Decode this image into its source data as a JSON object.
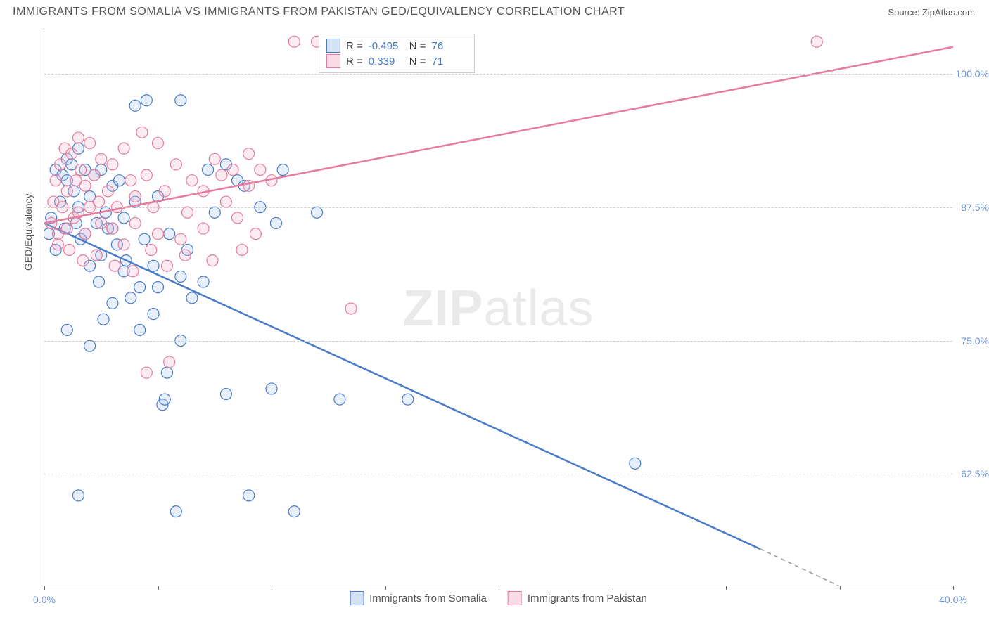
{
  "title": "IMMIGRANTS FROM SOMALIA VS IMMIGRANTS FROM PAKISTAN GED/EQUIVALENCY CORRELATION CHART",
  "source_label": "Source:",
  "source_name": "ZipAtlas.com",
  "y_axis_title": "GED/Equivalency",
  "watermark_bold": "ZIP",
  "watermark_rest": "atlas",
  "chart": {
    "type": "scatter",
    "xlim": [
      0,
      40
    ],
    "ylim": [
      52,
      104
    ],
    "xtick_positions": [
      0,
      5,
      10,
      15,
      20,
      25,
      30,
      35,
      40
    ],
    "xtick_labels": {
      "0": "0.0%",
      "40": "40.0%"
    },
    "ytick_positions": [
      62.5,
      75.0,
      87.5,
      100.0
    ],
    "ytick_labels": [
      "62.5%",
      "75.0%",
      "87.5%",
      "100.0%"
    ],
    "grid_color": "#cccccc",
    "background_color": "#ffffff",
    "axis_color": "#666666",
    "tick_label_color": "#6d94d0",
    "marker_radius": 8,
    "marker_stroke_width": 1.2,
    "marker_fill_opacity": 0.28,
    "series": [
      {
        "name": "Immigrants from Somalia",
        "color_stroke": "#4a7bc8",
        "color_fill": "#a8c5ec",
        "R": "-0.495",
        "N": "76",
        "trend": {
          "x1": 0,
          "y1": 86.0,
          "x2": 31.5,
          "y2": 55.5,
          "dash_x2": 37.0,
          "dash_y2": 50.0
        },
        "points": [
          [
            0.2,
            85.0
          ],
          [
            0.3,
            86.5
          ],
          [
            0.5,
            83.5
          ],
          [
            0.5,
            91.0
          ],
          [
            0.7,
            88.0
          ],
          [
            0.8,
            90.5
          ],
          [
            0.9,
            85.5
          ],
          [
            1.0,
            90.0
          ],
          [
            1.0,
            92.0
          ],
          [
            1.2,
            91.5
          ],
          [
            1.3,
            89.0
          ],
          [
            1.4,
            86.0
          ],
          [
            1.5,
            87.5
          ],
          [
            1.5,
            93.0
          ],
          [
            1.6,
            84.5
          ],
          [
            1.8,
            91.0
          ],
          [
            1.8,
            85.0
          ],
          [
            2.0,
            88.5
          ],
          [
            2.0,
            82.0
          ],
          [
            2.2,
            90.5
          ],
          [
            2.3,
            86.0
          ],
          [
            2.4,
            80.5
          ],
          [
            2.5,
            91.0
          ],
          [
            2.5,
            83.0
          ],
          [
            2.7,
            87.0
          ],
          [
            2.8,
            85.5
          ],
          [
            3.0,
            89.5
          ],
          [
            3.0,
            78.5
          ],
          [
            3.2,
            84.0
          ],
          [
            3.3,
            90.0
          ],
          [
            3.5,
            81.5
          ],
          [
            3.5,
            86.5
          ],
          [
            3.8,
            79.0
          ],
          [
            4.0,
            97.0
          ],
          [
            4.0,
            88.0
          ],
          [
            4.2,
            76.0
          ],
          [
            4.4,
            84.5
          ],
          [
            4.5,
            97.5
          ],
          [
            4.8,
            82.0
          ],
          [
            5.0,
            80.0
          ],
          [
            5.0,
            88.5
          ],
          [
            5.2,
            69.0
          ],
          [
            5.3,
            69.5
          ],
          [
            5.5,
            85.0
          ],
          [
            5.8,
            59.0
          ],
          [
            6.0,
            97.5
          ],
          [
            6.0,
            81.0
          ],
          [
            6.3,
            83.5
          ],
          [
            6.5,
            79.0
          ],
          [
            7.0,
            80.5
          ],
          [
            7.2,
            91.0
          ],
          [
            7.5,
            87.0
          ],
          [
            8.0,
            91.5
          ],
          [
            8.0,
            70.0
          ],
          [
            8.5,
            90.0
          ],
          [
            8.8,
            89.5
          ],
          [
            9.0,
            60.5
          ],
          [
            9.5,
            87.5
          ],
          [
            10.0,
            70.5
          ],
          [
            10.2,
            86.0
          ],
          [
            10.5,
            91.0
          ],
          [
            11.0,
            59.0
          ],
          [
            12.0,
            87.0
          ],
          [
            13.0,
            69.5
          ],
          [
            16.0,
            69.5
          ],
          [
            26.0,
            63.5
          ],
          [
            1.0,
            76.0
          ],
          [
            1.5,
            60.5
          ],
          [
            2.0,
            74.5
          ],
          [
            2.6,
            77.0
          ],
          [
            3.0,
            85.5
          ],
          [
            3.6,
            82.5
          ],
          [
            4.2,
            80.0
          ],
          [
            4.8,
            77.5
          ],
          [
            5.4,
            72.0
          ],
          [
            6.0,
            75.0
          ]
        ]
      },
      {
        "name": "Immigrants from Pakistan",
        "color_stroke": "#e67b9b",
        "color_fill": "#f5b8cc",
        "R": "0.339",
        "N": "71",
        "trend": {
          "x1": 0,
          "y1": 86.0,
          "x2": 40.0,
          "y2": 102.5
        },
        "points": [
          [
            0.3,
            86.0
          ],
          [
            0.4,
            88.0
          ],
          [
            0.5,
            90.0
          ],
          [
            0.6,
            85.0
          ],
          [
            0.7,
            91.5
          ],
          [
            0.8,
            87.5
          ],
          [
            0.9,
            93.0
          ],
          [
            1.0,
            85.5
          ],
          [
            1.0,
            89.0
          ],
          [
            1.2,
            92.5
          ],
          [
            1.3,
            86.5
          ],
          [
            1.4,
            90.0
          ],
          [
            1.5,
            94.0
          ],
          [
            1.5,
            87.0
          ],
          [
            1.6,
            91.0
          ],
          [
            1.8,
            89.5
          ],
          [
            1.8,
            85.0
          ],
          [
            2.0,
            93.5
          ],
          [
            2.0,
            87.5
          ],
          [
            2.2,
            90.5
          ],
          [
            2.4,
            88.0
          ],
          [
            2.5,
            86.0
          ],
          [
            2.5,
            92.0
          ],
          [
            2.8,
            89.0
          ],
          [
            3.0,
            91.5
          ],
          [
            3.0,
            85.5
          ],
          [
            3.2,
            87.5
          ],
          [
            3.5,
            93.0
          ],
          [
            3.5,
            84.0
          ],
          [
            3.8,
            90.0
          ],
          [
            4.0,
            88.5
          ],
          [
            4.0,
            86.0
          ],
          [
            4.3,
            94.5
          ],
          [
            4.5,
            72.0
          ],
          [
            4.5,
            90.5
          ],
          [
            4.8,
            87.5
          ],
          [
            5.0,
            93.5
          ],
          [
            5.0,
            85.0
          ],
          [
            5.3,
            89.0
          ],
          [
            5.5,
            73.0
          ],
          [
            5.8,
            91.5
          ],
          [
            6.0,
            84.5
          ],
          [
            6.3,
            87.0
          ],
          [
            6.5,
            90.0
          ],
          [
            7.0,
            89.0
          ],
          [
            7.0,
            85.5
          ],
          [
            7.5,
            92.0
          ],
          [
            7.8,
            90.5
          ],
          [
            8.0,
            88.0
          ],
          [
            8.3,
            91.0
          ],
          [
            8.5,
            86.5
          ],
          [
            9.0,
            92.5
          ],
          [
            9.0,
            89.5
          ],
          [
            9.3,
            85.0
          ],
          [
            9.5,
            91.0
          ],
          [
            10.0,
            90.0
          ],
          [
            12.0,
            103.0
          ],
          [
            13.5,
            78.0
          ],
          [
            34.0,
            103.0
          ],
          [
            11.0,
            103.0
          ],
          [
            0.6,
            84.0
          ],
          [
            1.1,
            83.5
          ],
          [
            1.7,
            82.5
          ],
          [
            2.3,
            83.0
          ],
          [
            3.1,
            82.0
          ],
          [
            3.9,
            81.5
          ],
          [
            4.7,
            83.5
          ],
          [
            5.4,
            82.0
          ],
          [
            6.2,
            83.0
          ],
          [
            7.4,
            82.5
          ],
          [
            8.7,
            83.5
          ]
        ]
      }
    ]
  },
  "legend_top": {
    "R_label": "R =",
    "N_label": "N ="
  },
  "bottom_legend": [
    "Immigrants from Somalia",
    "Immigrants from Pakistan"
  ]
}
